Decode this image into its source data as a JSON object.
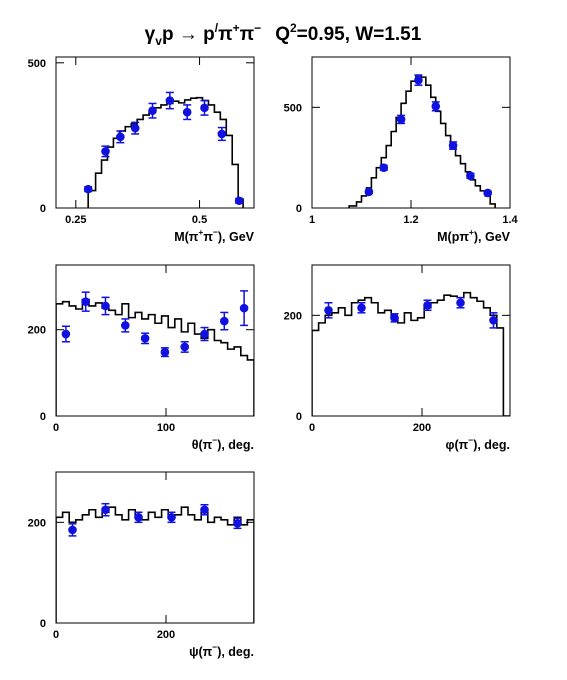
{
  "figure": {
    "title": {
      "gamma": "γ",
      "gamma_sub": "v",
      "p": "p",
      "arrow": " → ",
      "pprime": "p",
      "prime": "/",
      "pi_plus": "π",
      "plus": "+",
      "pi_minus": "π",
      "minus": "−",
      "q2": "Q",
      "q2_sup": "2",
      "q2_rest": "=0.95, W=1.51"
    }
  },
  "chart_data": [
    {
      "type": "line",
      "id": "m_pipi",
      "xlabel": "M(π⁺π⁻), GeV",
      "xlabel_parts": [
        "M(π",
        "+",
        "π",
        "−",
        "), GeV"
      ],
      "xlim": [
        0.21,
        0.61
      ],
      "ylim": [
        0,
        520
      ],
      "xticks": [
        0.25,
        0.5
      ],
      "xtick_labels": [
        "0.25",
        "0.5"
      ],
      "yticks": [
        0,
        500
      ],
      "ytick_labels": [
        "0",
        "500"
      ],
      "series": [
        {
          "kind": "histogram",
          "edges": [
            0.275,
            0.29,
            0.302,
            0.314,
            0.326,
            0.338,
            0.35,
            0.362,
            0.374,
            0.386,
            0.398,
            0.41,
            0.422,
            0.434,
            0.446,
            0.458,
            0.47,
            0.482,
            0.494,
            0.506,
            0.518,
            0.53,
            0.542,
            0.554,
            0.566,
            0.578,
            0.588
          ],
          "values": [
            60,
            120,
            165,
            210,
            240,
            265,
            280,
            290,
            305,
            320,
            330,
            345,
            355,
            360,
            368,
            362,
            372,
            378,
            380,
            370,
            355,
            330,
            305,
            250,
            150,
            30
          ]
        },
        {
          "kind": "points",
          "x": [
            0.275,
            0.31,
            0.34,
            0.37,
            0.405,
            0.44,
            0.475,
            0.51,
            0.545,
            0.58
          ],
          "y": [
            65,
            195,
            245,
            275,
            335,
            370,
            330,
            345,
            255,
            25
          ],
          "err": [
            8,
            18,
            20,
            20,
            25,
            28,
            25,
            25,
            22,
            8
          ]
        }
      ]
    },
    {
      "type": "line",
      "id": "m_ppip",
      "xlabel": "M(pπ⁺), GeV",
      "xlabel_parts": [
        "M(pπ",
        "+",
        "), GeV"
      ],
      "xlim": [
        1.0,
        1.4
      ],
      "ylim": [
        0,
        750
      ],
      "xticks": [
        1.0,
        1.2,
        1.4
      ],
      "xtick_labels": [
        "1",
        "1.2",
        "1.4"
      ],
      "yticks": [
        0,
        500
      ],
      "ytick_labels": [
        "0",
        "500"
      ],
      "series": [
        {
          "kind": "histogram",
          "edges": [
            1.075,
            1.09,
            1.1,
            1.11,
            1.12,
            1.13,
            1.14,
            1.15,
            1.16,
            1.17,
            1.18,
            1.19,
            1.2,
            1.21,
            1.22,
            1.23,
            1.24,
            1.25,
            1.26,
            1.27,
            1.28,
            1.29,
            1.3,
            1.31,
            1.32,
            1.33,
            1.34,
            1.35,
            1.36,
            1.37
          ],
          "values": [
            10,
            30,
            60,
            100,
            150,
            200,
            250,
            310,
            380,
            450,
            520,
            580,
            630,
            660,
            650,
            610,
            550,
            480,
            420,
            360,
            310,
            260,
            220,
            180,
            140,
            110,
            85,
            60,
            20
          ]
        },
        {
          "kind": "points",
          "x": [
            1.115,
            1.145,
            1.18,
            1.215,
            1.25,
            1.285,
            1.32,
            1.355
          ],
          "y": [
            80,
            200,
            440,
            635,
            505,
            310,
            160,
            75
          ],
          "err": [
            8,
            12,
            20,
            25,
            22,
            18,
            12,
            8
          ]
        }
      ]
    },
    {
      "type": "line",
      "id": "theta",
      "xlabel": "θ(π⁻), deg.",
      "xlabel_parts": [
        "θ(π",
        "−",
        "), deg."
      ],
      "xlim": [
        0,
        180
      ],
      "ylim": [
        0,
        350
      ],
      "xticks": [
        0,
        100
      ],
      "xtick_labels": [
        "0",
        "100"
      ],
      "yticks": [
        0,
        200
      ],
      "ytick_labels": [
        "0",
        "200"
      ],
      "series": [
        {
          "kind": "histogram",
          "edges": [
            0,
            6,
            12,
            18,
            24,
            30,
            36,
            42,
            48,
            54,
            60,
            66,
            72,
            78,
            84,
            90,
            96,
            102,
            108,
            114,
            120,
            126,
            132,
            138,
            144,
            150,
            156,
            162,
            168,
            174,
            180
          ],
          "values": [
            260,
            265,
            255,
            248,
            270,
            255,
            262,
            250,
            245,
            235,
            260,
            228,
            240,
            225,
            235,
            215,
            232,
            205,
            225,
            195,
            215,
            190,
            180,
            200,
            175,
            170,
            155,
            160,
            140,
            130
          ]
        },
        {
          "kind": "points",
          "x": [
            9,
            27,
            45,
            63,
            81,
            99,
            117,
            135,
            153,
            171
          ],
          "y": [
            190,
            265,
            255,
            210,
            180,
            148,
            160,
            190,
            220,
            250
          ],
          "err": [
            18,
            22,
            20,
            15,
            12,
            10,
            12,
            15,
            20,
            40
          ]
        }
      ]
    },
    {
      "type": "line",
      "id": "phi",
      "xlabel": "φ(π⁻), deg.",
      "xlabel_parts": [
        "φ(π",
        "−",
        "), deg."
      ],
      "xlim": [
        0,
        360
      ],
      "ylim": [
        0,
        300
      ],
      "xticks": [
        0,
        200
      ],
      "xtick_labels": [
        "0",
        "200"
      ],
      "yticks": [
        0,
        200
      ],
      "ytick_labels": [
        "0",
        "200"
      ],
      "series": [
        {
          "kind": "histogram",
          "edges": [
            0,
            12,
            24,
            36,
            48,
            60,
            72,
            84,
            96,
            108,
            120,
            132,
            144,
            156,
            168,
            180,
            192,
            204,
            216,
            228,
            240,
            252,
            264,
            276,
            288,
            300,
            312,
            324,
            336,
            348,
            360
          ],
          "values": [
            170,
            185,
            200,
            205,
            215,
            200,
            225,
            230,
            235,
            225,
            205,
            210,
            195,
            185,
            205,
            190,
            195,
            215,
            225,
            230,
            240,
            238,
            235,
            245,
            235,
            228,
            215,
            200,
            175,
            0
          ]
        },
        {
          "kind": "points",
          "x": [
            30,
            90,
            150,
            210,
            270,
            330
          ],
          "y": [
            210,
            215,
            195,
            220,
            225,
            190
          ],
          "err": [
            15,
            10,
            8,
            10,
            10,
            15
          ]
        }
      ]
    },
    {
      "type": "line",
      "id": "psi",
      "xlabel": "ψ(π⁻), deg.",
      "xlabel_parts": [
        "ψ(π",
        "−",
        "), deg."
      ],
      "xlim": [
        0,
        360
      ],
      "ylim": [
        0,
        300
      ],
      "xticks": [
        0,
        200
      ],
      "xtick_labels": [
        "0",
        "200"
      ],
      "yticks": [
        0,
        200
      ],
      "ytick_labels": [
        "0",
        "200"
      ],
      "series": [
        {
          "kind": "histogram",
          "edges": [
            0,
            12,
            24,
            36,
            48,
            60,
            72,
            84,
            96,
            108,
            120,
            132,
            144,
            156,
            168,
            180,
            192,
            204,
            216,
            228,
            240,
            252,
            264,
            276,
            288,
            300,
            312,
            324,
            336,
            348,
            360
          ],
          "values": [
            210,
            220,
            200,
            205,
            215,
            225,
            210,
            220,
            230,
            215,
            205,
            225,
            212,
            205,
            220,
            210,
            225,
            210,
            215,
            230,
            215,
            205,
            220,
            200,
            210,
            205,
            195,
            210,
            195,
            205
          ]
        },
        {
          "kind": "points",
          "x": [
            30,
            90,
            150,
            210,
            270,
            330
          ],
          "y": [
            185,
            225,
            210,
            210,
            225,
            198
          ],
          "err": [
            12,
            12,
            10,
            10,
            10,
            10
          ]
        }
      ]
    }
  ]
}
